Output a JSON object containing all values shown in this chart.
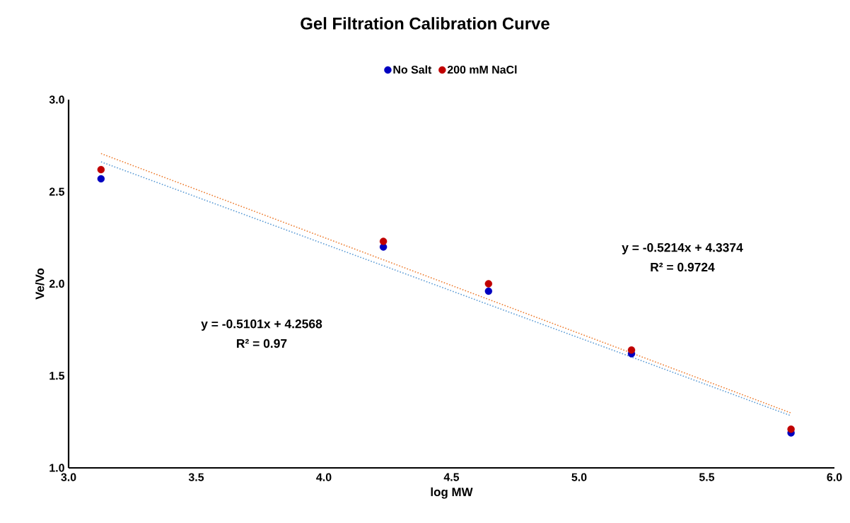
{
  "chart_data": {
    "type": "scatter",
    "title": "Gel Filtration Calibration Curve",
    "xlabel": "log MW",
    "ylabel": "Ve/Vo",
    "x": [
      3.127,
      4.233,
      4.645,
      5.205,
      5.83
    ],
    "series": [
      {
        "name": "No Salt",
        "color": "#0000c0",
        "values": [
          2.57,
          2.2,
          1.96,
          1.62,
          1.19
        ],
        "marker": "circle"
      },
      {
        "name": "200 mM NaCl",
        "color": "#c00000",
        "values": [
          2.62,
          2.23,
          2.0,
          1.64,
          1.21
        ],
        "marker": "circle"
      },
      {
        "type": "line",
        "color": "#5b9bd5",
        "values": [
          2.662,
          2.098,
          1.887,
          1.602,
          1.283
        ],
        "line_style": "dotted",
        "marker": "none"
      },
      {
        "type": "line",
        "color": "#ed7d31",
        "values": [
          2.707,
          2.13,
          1.915,
          1.624,
          1.298
        ],
        "line_style": "dotted",
        "marker": "none"
      }
    ],
    "xlim": [
      3.0,
      6.0
    ],
    "xticks": [
      {
        "value": 3,
        "label": "3.0"
      },
      3.5,
      {
        "value": 4,
        "label": "4.0"
      },
      4.5,
      {
        "value": 5,
        "label": "5.0"
      },
      5.5,
      {
        "value": 6,
        "label": "6.0"
      }
    ],
    "ylim": [
      1.0,
      3.0
    ],
    "yticks": [
      {
        "value": 1,
        "label": "1.0"
      },
      1.5,
      {
        "value": 2,
        "label": "2.0"
      },
      2.5,
      {
        "value": 3,
        "label": "3.0"
      }
    ],
    "annotations": [
      "y = -0.5101x + 4.2568",
      "R² = 0.97",
      "y = -0.5214x + 4.3374",
      "R² = 0.9724"
    ],
    "legend": "top",
    "grid": false
  }
}
